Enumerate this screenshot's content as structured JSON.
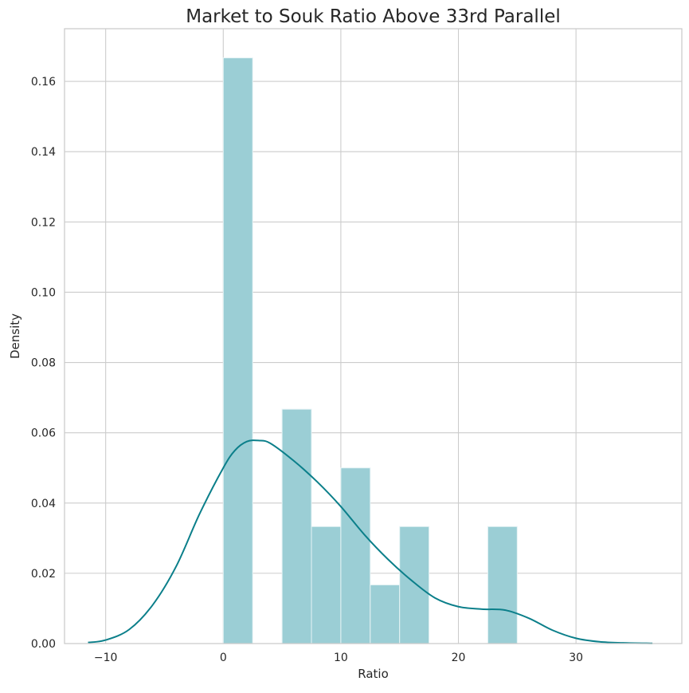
{
  "chart_data": {
    "type": "bar",
    "title": "Market to Souk Ratio Above 33rd Parallel",
    "xlabel": "Ratio",
    "ylabel": "Density",
    "xlim": [
      -13.5,
      39
    ],
    "ylim": [
      0,
      0.175
    ],
    "grid": true,
    "x_ticks": [
      {
        "value": -10,
        "label": "−10"
      },
      {
        "value": 0,
        "label": "0"
      },
      {
        "value": 10,
        "label": "10"
      },
      {
        "value": 20,
        "label": "20"
      },
      {
        "value": 30,
        "label": "30"
      }
    ],
    "y_ticks": [
      {
        "value": 0.0,
        "label": "0.00"
      },
      {
        "value": 0.02,
        "label": "0.02"
      },
      {
        "value": 0.04,
        "label": "0.04"
      },
      {
        "value": 0.06,
        "label": "0.06"
      },
      {
        "value": 0.08,
        "label": "0.08"
      },
      {
        "value": 0.1,
        "label": "0.10"
      },
      {
        "value": 0.12,
        "label": "0.12"
      },
      {
        "value": 0.14,
        "label": "0.14"
      },
      {
        "value": 0.16,
        "label": "0.16"
      }
    ],
    "histogram_bins": [
      {
        "x0": 0.0,
        "x1": 2.5,
        "density": 0.1667
      },
      {
        "x0": 2.5,
        "x1": 5.0,
        "density": 0.0
      },
      {
        "x0": 5.0,
        "x1": 7.5,
        "density": 0.0667
      },
      {
        "x0": 7.5,
        "x1": 10.0,
        "density": 0.0333
      },
      {
        "x0": 10.0,
        "x1": 12.5,
        "density": 0.05
      },
      {
        "x0": 12.5,
        "x1": 15.0,
        "density": 0.0167
      },
      {
        "x0": 15.0,
        "x1": 17.5,
        "density": 0.0333
      },
      {
        "x0": 17.5,
        "x1": 20.0,
        "density": 0.0
      },
      {
        "x0": 20.0,
        "x1": 22.5,
        "density": 0.0
      },
      {
        "x0": 22.5,
        "x1": 25.0,
        "density": 0.0333
      }
    ],
    "kde": {
      "x": [
        -11.5,
        -10,
        -8,
        -6,
        -4,
        -2,
        0,
        1,
        2,
        3,
        4,
        6,
        8,
        10,
        12,
        14,
        16,
        18,
        20,
        22,
        24,
        26,
        28,
        30,
        32,
        34,
        36.5
      ],
      "y": [
        0.0003,
        0.001,
        0.004,
        0.011,
        0.022,
        0.037,
        0.05,
        0.055,
        0.0575,
        0.0578,
        0.057,
        0.052,
        0.046,
        0.039,
        0.031,
        0.024,
        0.018,
        0.013,
        0.0105,
        0.0098,
        0.0095,
        0.0072,
        0.0038,
        0.0015,
        0.0005,
        0.0002,
        5e-05
      ]
    },
    "colors": {
      "bars": "#9bced5",
      "kde": "#0b7f8a"
    }
  }
}
